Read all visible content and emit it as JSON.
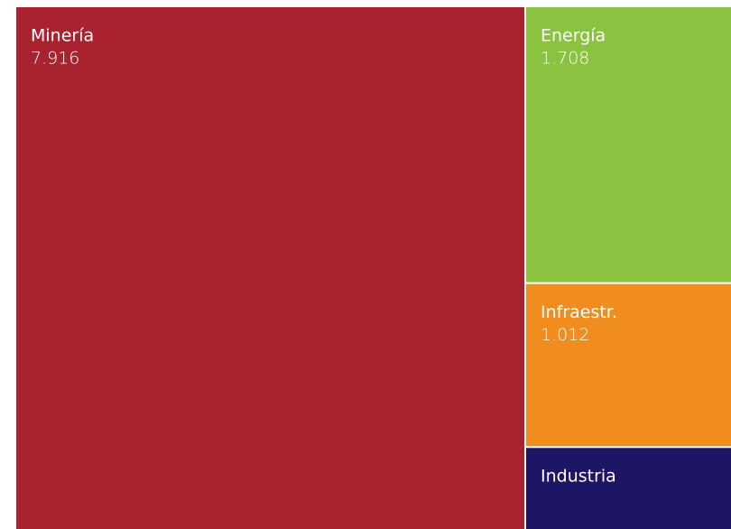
{
  "chart_data": {
    "type": "treemap",
    "categories": [
      "Minería",
      "Energía",
      "Infraestr.",
      "Industria"
    ],
    "values": [
      7.916,
      1.708,
      1.012,
      0.5
    ],
    "value_labels": [
      "7.916",
      "1.708",
      "1.012",
      null
    ],
    "colors": [
      "#a8232f",
      "#8bc340",
      "#f18c1f",
      "#1d1565"
    ]
  }
}
